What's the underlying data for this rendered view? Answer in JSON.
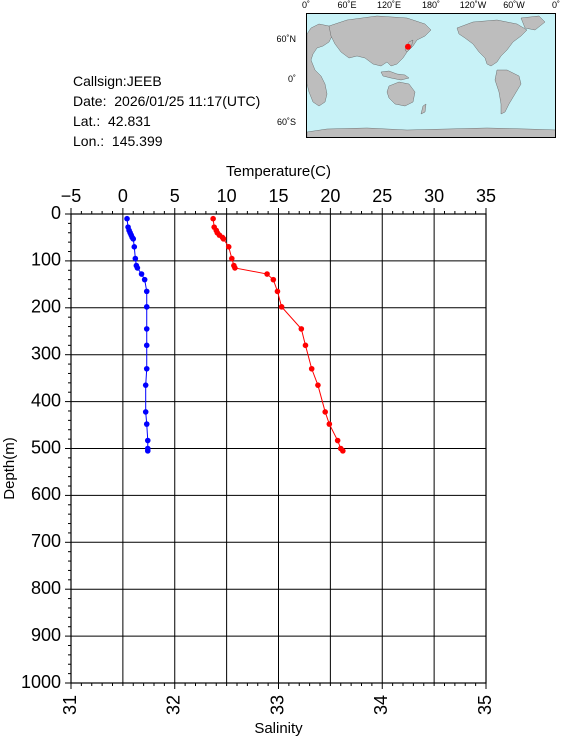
{
  "station": {
    "callsign": "Callsign:JEEB",
    "date": "Date:  2026/01/25 11:17(UTC)",
    "lat": "Lat.:  42.831",
    "lon": "Lon.:  145.399"
  },
  "map": {
    "top_labels": [
      "0˚",
      "60˚E",
      "120˚E",
      "180˚",
      "120˚W",
      "60˚W",
      "0˚"
    ],
    "side_labels": [
      "60˚N",
      "0˚",
      "60˚S"
    ],
    "ocean_color": "#c8f2f7",
    "land_color": "#bdbdbd",
    "marker_color": "#ff0000",
    "marker": {
      "lat": 42.831,
      "lon": 145.399
    }
  },
  "chart_data": {
    "type": "line",
    "ylabel": "Depth(m)",
    "ylim": [
      0,
      1000
    ],
    "yticks": [
      "0",
      "100",
      "200",
      "300",
      "400",
      "500",
      "600",
      "700",
      "800",
      "900",
      "1000"
    ],
    "y_inverted": true,
    "grid": true,
    "top_axis": {
      "label": "Temperature(C)",
      "range": [
        -5,
        35
      ],
      "ticks": [
        "−5",
        "0",
        "5",
        "10",
        "15",
        "20",
        "25",
        "30",
        "35"
      ]
    },
    "bottom_axis": {
      "label": "Salinity",
      "range": [
        31,
        35
      ],
      "ticks": [
        "31",
        "32",
        "33",
        "34",
        "35"
      ]
    },
    "series": [
      {
        "axis": "top",
        "color": "#ff0000",
        "points": [
          [
            8.7,
            10
          ],
          [
            8.8,
            28
          ],
          [
            9.0,
            35
          ],
          [
            9.1,
            40
          ],
          [
            9.3,
            45
          ],
          [
            9.6,
            50
          ],
          [
            9.7,
            53
          ],
          [
            10.2,
            70
          ],
          [
            10.5,
            95
          ],
          [
            10.7,
            110
          ],
          [
            10.8,
            115
          ],
          [
            13.9,
            128
          ],
          [
            14.5,
            140
          ],
          [
            14.9,
            165
          ],
          [
            15.3,
            198
          ],
          [
            17.2,
            245
          ],
          [
            17.6,
            280
          ],
          [
            18.2,
            330
          ],
          [
            18.8,
            365
          ],
          [
            19.5,
            422
          ],
          [
            19.9,
            448
          ],
          [
            20.7,
            483
          ],
          [
            21.0,
            500
          ],
          [
            21.2,
            505
          ]
        ]
      },
      {
        "axis": "bottom",
        "color": "#0000ff",
        "points": [
          [
            31.54,
            10
          ],
          [
            31.55,
            28
          ],
          [
            31.56,
            35
          ],
          [
            31.57,
            40
          ],
          [
            31.58,
            45
          ],
          [
            31.59,
            50
          ],
          [
            31.6,
            53
          ],
          [
            31.61,
            70
          ],
          [
            31.62,
            95
          ],
          [
            31.63,
            110
          ],
          [
            31.64,
            115
          ],
          [
            31.68,
            128
          ],
          [
            31.71,
            140
          ],
          [
            31.73,
            165
          ],
          [
            31.73,
            198
          ],
          [
            31.73,
            245
          ],
          [
            31.73,
            280
          ],
          [
            31.73,
            330
          ],
          [
            31.72,
            365
          ],
          [
            31.72,
            422
          ],
          [
            31.73,
            448
          ],
          [
            31.74,
            483
          ],
          [
            31.74,
            500
          ],
          [
            31.74,
            505
          ]
        ]
      }
    ]
  }
}
